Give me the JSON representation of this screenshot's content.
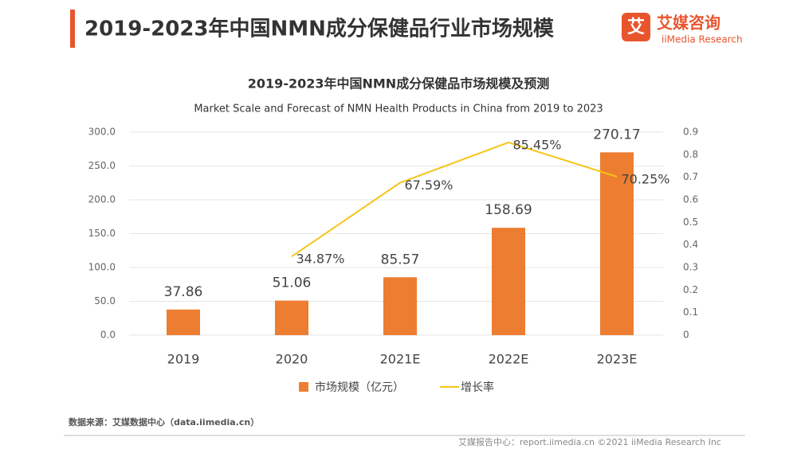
{
  "header": {
    "title": "2019-2023年中国NMN成分保健品行业市场规模",
    "logo_icon": "艾",
    "logo_name": "艾媒咨询",
    "logo_english": "iiMedia Research"
  },
  "chart_data": {
    "type": "bar-line",
    "title": "2019-2023年中国NMN成分保健品市场规模及预测",
    "subtitle": "Market Scale and Forecast of NMN Health Products in China from 2019 to 2023",
    "categories": [
      "2019",
      "2020",
      "2021E",
      "2022E",
      "2023E"
    ],
    "series": [
      {
        "name": "市场规模（亿元）",
        "type": "bar",
        "color": "#ed7d31",
        "values": [
          37.86,
          51.06,
          85.57,
          158.69,
          270.17
        ]
      },
      {
        "name": "增长率",
        "type": "line",
        "axis": "y2",
        "color": "#f5c518",
        "values": [
          null,
          0.3487,
          0.6759,
          0.8545,
          0.7025
        ],
        "value_labels": [
          null,
          "34.87%",
          "67.59%",
          "85.45%",
          "70.25%"
        ]
      }
    ],
    "ylim": [
      0,
      300
    ],
    "yticks": [
      {
        "value": 0,
        "label": "0.0"
      },
      {
        "value": 50,
        "label": "50.0"
      },
      {
        "value": 100,
        "label": "100.0"
      },
      {
        "value": 150,
        "label": "150.0"
      },
      {
        "value": 200,
        "label": "200.0"
      },
      {
        "value": 250,
        "label": "250.0"
      },
      {
        "value": 300,
        "label": "300.0"
      }
    ],
    "y2lim": [
      0,
      0.9
    ],
    "y2ticks": [
      0,
      0.1,
      0.2,
      0.3,
      0.4,
      0.5,
      0.6,
      0.7,
      0.8,
      0.9
    ],
    "grid": true
  },
  "footer": {
    "source": "数据来源：艾媒数据中心（data.iimedia.cn）",
    "credit": "艾媒报告中心：report.iimedia.cn ©2021 iiMedia Research Inc"
  }
}
